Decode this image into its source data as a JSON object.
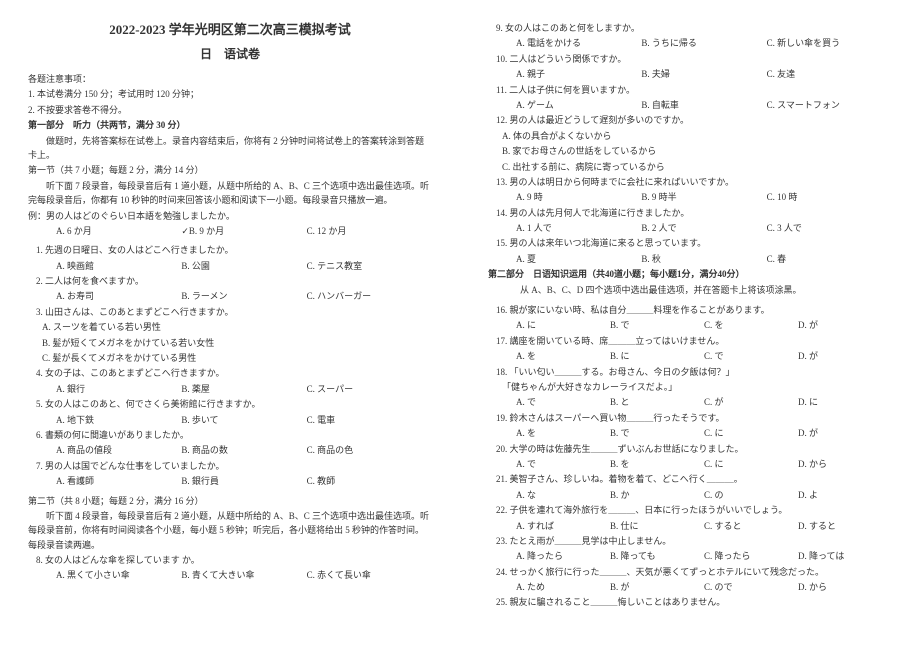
{
  "header": {
    "title": "2022-2023 学年光明区第二次高三模拟考试",
    "subtitle": "日　语试卷"
  },
  "notes_head": "各题注意事项：",
  "notes": [
    "1. 本试卷满分 150 分；考试用时 120 分钟；",
    "2. 不按要求答卷不得分。"
  ],
  "part1_head": "第一部分　听力（共两节，满分 30 分）",
  "part1_desc1": "　　做题时，先将答案标在试卷上。录音内容结束后，你将有 2 分钟时间将试卷上的答案转涂到答题卡上。",
  "sec1_head": "第一节（共 7 小题；每题 2 分，满分 14 分）",
  "sec1_desc": "　　听下面 7 段录音，每段录音后有 1 道小题，从题中所给的 A、B、C 三个选项中选出最佳选项。听完每段录音后，你都有 10 秒钟的时间来回答该小题和阅读下一小题。每段录音只播放一遍。",
  "example_q": "例：男の人はどのぐらい日本語を勉強しましたか。",
  "example_choices": [
    "A. 6 か月",
    "✓B. 9 か月",
    "C. 12 か月"
  ],
  "q1_7": [
    {
      "n": "1.",
      "q": "先週の日曜日、女の人はどこへ行きましたか。",
      "c": [
        "A. 映画館",
        "B. 公園",
        "C. テニス教室"
      ]
    },
    {
      "n": "2.",
      "q": "二人は何を食べますか。",
      "c": [
        "A. お寿司",
        "B. ラーメン",
        "C. ハンバーガー"
      ]
    },
    {
      "n": "3.",
      "q": "山田さんは、このあとまずどこへ行きますか。",
      "sub": [
        "A. スーツを着ている若い男性",
        "B. 髪が短くてメガネをかけている若い女性",
        "C. 髪が長くてメガネをかけている男性"
      ]
    },
    {
      "n": "4.",
      "q": "女の子は、このあとまずどこへ行きますか。",
      "c": [
        "A. 銀行",
        "B. 薬屋",
        "C. スーパー"
      ]
    },
    {
      "n": "5.",
      "q": "女の人はこのあと、何でさくら美術館に行きますか。",
      "c": [
        "A. 地下鉄",
        "B. 歩いて",
        "C. 電車"
      ]
    },
    {
      "n": "6.",
      "q": "書類の何に間違いがありましたか。",
      "c": [
        "A. 商品の値段",
        "B. 商品の数",
        "C. 商品の色"
      ]
    },
    {
      "n": "7.",
      "q": "男の人は国でどんな仕事をしていましたか。",
      "c": [
        "A. 看護師",
        "B. 銀行員",
        "C. 教師"
      ]
    }
  ],
  "sec2_head": "第二节（共 8 小题；每题 2 分，满分 16 分）",
  "sec2_desc": "　　听下面 4 段录音，每段录音后有 2 道小题，从题中所给的 A、B、C 三个选项中选出最佳选项。听每段录音前，你将有时间阅读各个小题，每小题 5 秒钟；听完后，各小题将给出 5 秒钟的作答时间。每段录音读两遍。",
  "q8": {
    "n": "8.",
    "q": "女の人はどんな傘を探しています か。",
    "c": [
      "A. 黒くて小さい傘",
      "B. 青くて大きい傘",
      "C. 赤くて長い傘"
    ]
  },
  "right_qs": [
    {
      "n": "9.",
      "q": "女の人はこのあと何をしますか。",
      "c": [
        "A. 電話をかける",
        "B. うちに帰る",
        "C. 新しい傘を買う"
      ]
    },
    {
      "n": "10.",
      "q": "二人はどういう関係ですか。",
      "c": [
        "A. 親子",
        "B. 夫婦",
        "C. 友達"
      ]
    },
    {
      "n": "11.",
      "q": "二人は子供に何を買いますか。",
      "c": [
        "A. ゲーム",
        "B. 自転車",
        "C. スマートフォン"
      ]
    },
    {
      "n": "12.",
      "q": "男の人は最近どうして遅刻が多いのですか。",
      "sub": [
        "A. 体の具合がよくないから",
        "B. 家でお母さんの世話をしているから",
        "C. 出社する前に、病院に寄っているから"
      ]
    },
    {
      "n": "13.",
      "q": "男の人は明日から何時までに会社に来ればいいですか。",
      "c": [
        "A. 9 時",
        "B. 9 時半",
        "C. 10 時"
      ]
    },
    {
      "n": "14.",
      "q": "男の人は先月何人で北海道に行きましたか。",
      "c": [
        "A. 1 人で",
        "B. 2 人で",
        "C. 3 人で"
      ]
    },
    {
      "n": "15.",
      "q": "男の人は来年いつ北海道に来ると思っています。",
      "c": [
        "A. 夏",
        "B. 秋",
        "C. 春"
      ]
    }
  ],
  "part2_head": "第二部分　日语知识运用（共40道小题；每小题1分，满分40分）",
  "part2_desc": "　　从 A、B、C、D 四个选项中选出最佳选项，并在答题卡上将该项涂黑。",
  "q16_25": [
    {
      "n": "16.",
      "q": "親が家にいない時、私は自分＿＿＿料理を作ることがあります。",
      "c": [
        "A. に",
        "B. で",
        "C. を",
        "D. が"
      ]
    },
    {
      "n": "17.",
      "q": "講座を開いている時、席＿＿＿立ってはいけません。",
      "c": [
        "A. を",
        "B. に",
        "C. で",
        "D. が"
      ]
    },
    {
      "n": "18.",
      "q": "「いい匂い＿＿＿する。お母さん、今日の夕飯は何？」",
      "q2": "「健ちゃんが大好きなカレーライスだよ。」",
      "c": [
        "A. で",
        "B. と",
        "C. が",
        "D. に"
      ]
    },
    {
      "n": "19.",
      "q": "鈴木さんはスーパーへ買い物＿＿＿行ったそうです。",
      "c": [
        "A. を",
        "B. で",
        "C. に",
        "D. が"
      ]
    },
    {
      "n": "20.",
      "q": "大学の時は佐藤先生＿＿＿ずいぶんお世話になりました。",
      "c": [
        "A. で",
        "B. を",
        "C. に",
        "D. から"
      ]
    },
    {
      "n": "21.",
      "q": "美智子さん、珍しいね。着物を着て、どこへ行く＿＿＿。",
      "c": [
        "A. な",
        "B. か",
        "C. の",
        "D. よ"
      ]
    },
    {
      "n": "22.",
      "q": "子供を連れて海外旅行を＿＿＿、日本に行ったほうがいいでしょう。",
      "c": [
        "A. すれば",
        "B. 仕に",
        "C. すると",
        "D. すると"
      ]
    },
    {
      "n": "23.",
      "q": "たとえ雨が＿＿＿見学は中止しません。",
      "c": [
        "A. 降ったら",
        "B. 降っても",
        "C. 降ったら",
        "D. 降っては"
      ]
    },
    {
      "n": "24.",
      "q": "せっかく旅行に行った＿＿＿、天気が悪くてずっとホテルにいて残念だった。",
      "c": [
        "A. ため",
        "B. が",
        "C. ので",
        "D. から"
      ]
    },
    {
      "n": "25.",
      "q": "親友に騙されること＿＿＿悔しいことはありません。"
    }
  ]
}
